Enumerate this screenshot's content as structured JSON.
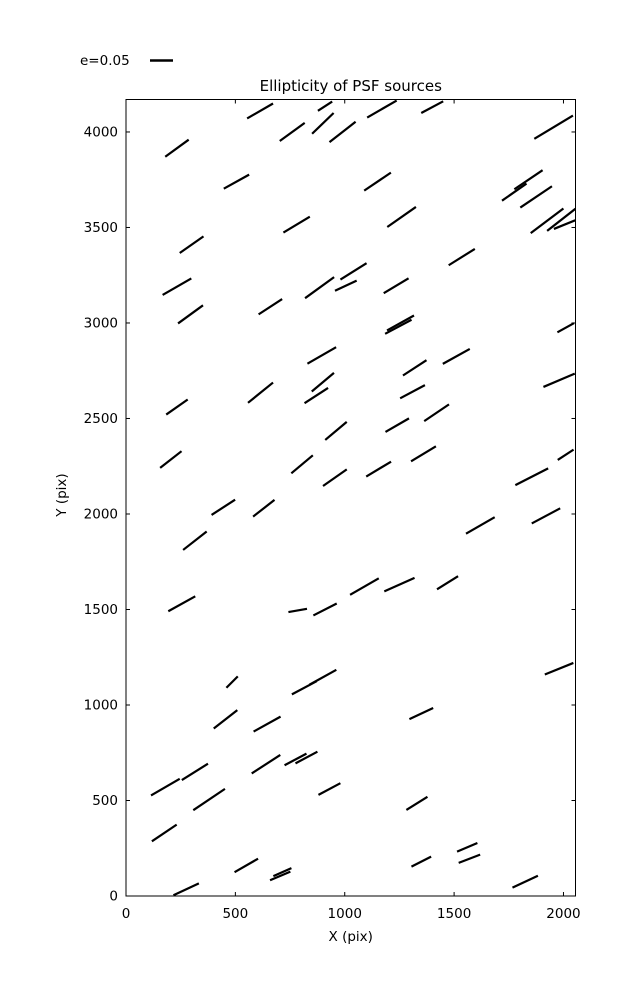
{
  "figure": {
    "background": "#ffffff",
    "line_color": "#000000"
  },
  "legend": {
    "label": "e=0.05",
    "e_ref": 0.05
  },
  "chart_data": {
    "type": "quiver",
    "title": "Ellipticity of PSF sources",
    "xlabel": "X (pix)",
    "ylabel": "Y (pix)",
    "xlim": [
      0,
      2055
    ],
    "ylim": [
      0,
      4170
    ],
    "xticks": [
      0,
      500,
      1000,
      1500,
      2000
    ],
    "yticks": [
      0,
      500,
      1000,
      1500,
      2000,
      2500,
      3000,
      3500,
      4000
    ],
    "grid": false,
    "tick_direction": "in",
    "legend": {
      "label": "e=0.05",
      "e_ref": 0.05,
      "position": "above-axes-left"
    },
    "segment_color": "#000000",
    "segments_columns": [
      "x_pix",
      "y_pix",
      "angle_deg_ccw_screen",
      "ellipticity"
    ],
    "segments": [
      [
        613,
        4110,
        30,
        0.065
      ],
      [
        910,
        4135,
        33,
        0.037
      ],
      [
        233,
        3915,
        36,
        0.063
      ],
      [
        760,
        4000,
        36,
        0.067
      ],
      [
        900,
        4045,
        44,
        0.065
      ],
      [
        990,
        4000,
        38,
        0.072
      ],
      [
        1955,
        4025,
        31,
        0.098
      ],
      [
        1170,
        4120,
        30,
        0.074
      ],
      [
        1400,
        4130,
        28,
        0.054
      ],
      [
        505,
        3740,
        29,
        0.063
      ],
      [
        780,
        3515,
        31,
        0.067
      ],
      [
        1150,
        3740,
        34,
        0.07
      ],
      [
        1260,
        3555,
        35,
        0.076
      ],
      [
        1775,
        3685,
        35,
        0.065
      ],
      [
        1840,
        3750,
        34,
        0.074
      ],
      [
        1875,
        3660,
        34,
        0.083
      ],
      [
        1925,
        3535,
        37,
        0.089
      ],
      [
        1990,
        3540,
        38,
        0.078
      ],
      [
        2005,
        3515,
        22,
        0.05
      ],
      [
        300,
        3410,
        35,
        0.063
      ],
      [
        233,
        3190,
        30,
        0.072
      ],
      [
        885,
        3185,
        36,
        0.078
      ],
      [
        1040,
        3270,
        32,
        0.067
      ],
      [
        1005,
        3195,
        25,
        0.052
      ],
      [
        1235,
        3195,
        31,
        0.063
      ],
      [
        1535,
        3345,
        32,
        0.067
      ],
      [
        295,
        3045,
        36,
        0.067
      ],
      [
        660,
        3085,
        33,
        0.061
      ],
      [
        1255,
        3000,
        29,
        0.067
      ],
      [
        1245,
        2980,
        28,
        0.065
      ],
      [
        2010,
        2975,
        29,
        0.041
      ],
      [
        895,
        2830,
        30,
        0.072
      ],
      [
        1510,
        2825,
        29,
        0.067
      ],
      [
        1320,
        2765,
        33,
        0.061
      ],
      [
        233,
        2560,
        35,
        0.057
      ],
      [
        615,
        2635,
        39,
        0.07
      ],
      [
        900,
        2690,
        40,
        0.063
      ],
      [
        870,
        2620,
        33,
        0.061
      ],
      [
        1310,
        2640,
        28,
        0.061
      ],
      [
        1980,
        2700,
        23,
        0.074
      ],
      [
        960,
        2435,
        40,
        0.061
      ],
      [
        1420,
        2530,
        34,
        0.065
      ],
      [
        1240,
        2465,
        30,
        0.059
      ],
      [
        205,
        2285,
        38,
        0.059
      ],
      [
        805,
        2260,
        40,
        0.061
      ],
      [
        955,
        2190,
        35,
        0.063
      ],
      [
        1360,
        2315,
        31,
        0.063
      ],
      [
        1155,
        2235,
        31,
        0.063
      ],
      [
        2010,
        2310,
        33,
        0.041
      ],
      [
        1855,
        2195,
        27,
        0.08
      ],
      [
        445,
        2035,
        33,
        0.061
      ],
      [
        630,
        2030,
        38,
        0.059
      ],
      [
        1920,
        1990,
        28,
        0.07
      ],
      [
        1620,
        1940,
        30,
        0.072
      ],
      [
        315,
        1860,
        38,
        0.065
      ],
      [
        255,
        1530,
        29,
        0.067
      ],
      [
        785,
        1495,
        10,
        0.041
      ],
      [
        910,
        1500,
        27,
        0.057
      ],
      [
        1090,
        1620,
        30,
        0.072
      ],
      [
        1250,
        1630,
        24,
        0.072
      ],
      [
        1470,
        1640,
        32,
        0.054
      ],
      [
        485,
        1120,
        45,
        0.035
      ],
      [
        815,
        1090,
        28,
        0.061
      ],
      [
        900,
        1145,
        29,
        0.067
      ],
      [
        1980,
        1190,
        22,
        0.067
      ],
      [
        455,
        925,
        38,
        0.065
      ],
      [
        645,
        900,
        29,
        0.067
      ],
      [
        1350,
        955,
        25,
        0.057
      ],
      [
        640,
        690,
        33,
        0.074
      ],
      [
        775,
        715,
        28,
        0.054
      ],
      [
        825,
        725,
        28,
        0.054
      ],
      [
        180,
        570,
        30,
        0.072
      ],
      [
        315,
        650,
        32,
        0.067
      ],
      [
        380,
        505,
        34,
        0.083
      ],
      [
        930,
        560,
        28,
        0.054
      ],
      [
        1330,
        485,
        32,
        0.054
      ],
      [
        175,
        330,
        34,
        0.065
      ],
      [
        550,
        160,
        30,
        0.059
      ],
      [
        705,
        105,
        23,
        0.048
      ],
      [
        715,
        125,
        24,
        0.043
      ],
      [
        275,
        35,
        25,
        0.061
      ],
      [
        1560,
        255,
        23,
        0.048
      ],
      [
        1570,
        195,
        21,
        0.05
      ],
      [
        1350,
        180,
        27,
        0.048
      ],
      [
        1825,
        75,
        25,
        0.061
      ]
    ]
  }
}
